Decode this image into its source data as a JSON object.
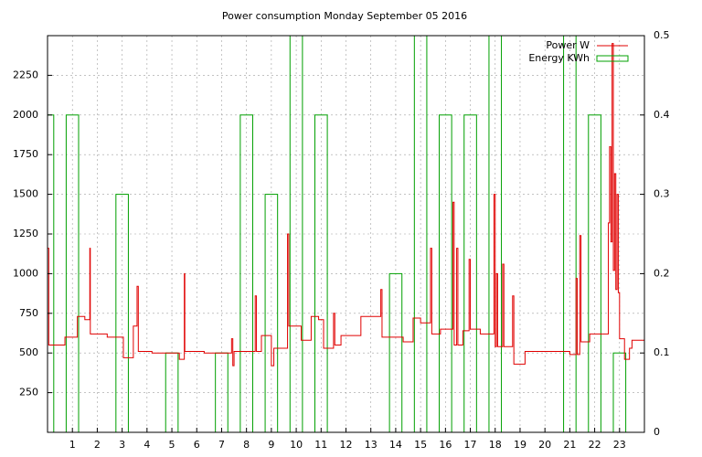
{
  "chart_data": {
    "type": "line",
    "title": "Power consumption Monday September 05 2016",
    "xlim": [
      0,
      24
    ],
    "xticks": [
      1,
      2,
      3,
      4,
      5,
      6,
      7,
      8,
      9,
      10,
      11,
      12,
      13,
      14,
      15,
      16,
      17,
      18,
      19,
      20,
      21,
      22,
      23
    ],
    "ylim": [
      0,
      2500
    ],
    "yticks": [
      250,
      500,
      750,
      1000,
      1250,
      1500,
      1750,
      2000,
      2250
    ],
    "y2lim": [
      0,
      0.5
    ],
    "y2ticks": [
      0,
      0.1,
      0.2,
      0.3,
      0.4,
      0.5
    ],
    "grid": true,
    "legend": "top right",
    "series": [
      {
        "name": "Power W",
        "color": "#e00000",
        "style": "steps",
        "x": [
          0,
          0.05,
          0.7,
          1.2,
          1.5,
          1.7,
          1.72,
          2.4,
          3.05,
          3.45,
          3.6,
          3.65,
          4.2,
          5.3,
          5.5,
          5.52,
          6.3,
          7.4,
          7.45,
          7.5,
          8.35,
          8.4,
          8.6,
          9.0,
          9.1,
          9.65,
          9.7,
          10.2,
          10.6,
          10.9,
          11.1,
          11.5,
          11.55,
          11.8,
          12.6,
          13.4,
          13.45,
          14.3,
          14.7,
          15.0,
          15.4,
          15.45,
          15.8,
          16.3,
          16.35,
          16.45,
          16.5,
          16.7,
          16.95,
          17.0,
          17.4,
          17.95,
          18.0,
          18.05,
          18.1,
          18.3,
          18.35,
          18.7,
          18.75,
          19.2,
          21.0,
          21.25,
          21.3,
          21.4,
          21.45,
          21.8,
          22.55,
          22.6,
          22.65,
          22.7,
          22.75,
          22.8,
          22.85,
          22.9,
          22.95,
          23.0,
          23.2,
          23.4,
          23.5,
          24
        ],
        "values": [
          1160,
          550,
          600,
          730,
          710,
          1160,
          620,
          600,
          470,
          670,
          920,
          510,
          500,
          460,
          1000,
          510,
          500,
          590,
          420,
          510,
          860,
          510,
          610,
          420,
          530,
          1250,
          670,
          580,
          730,
          710,
          530,
          750,
          550,
          610,
          730,
          900,
          600,
          570,
          720,
          690,
          1160,
          620,
          650,
          1450,
          550,
          1160,
          550,
          640,
          1090,
          650,
          620,
          1500,
          540,
          1000,
          540,
          1060,
          540,
          860,
          430,
          510,
          490,
          970,
          490,
          1240,
          570,
          620,
          1320,
          1800,
          1200,
          2450,
          1020,
          1630,
          900,
          1500,
          880,
          590,
          460,
          530,
          580,
          580
        ]
      },
      {
        "name": "Energy KWh",
        "color": "#00a000",
        "style": "boxes",
        "axis": "y2",
        "x": [
          0,
          1,
          2,
          3,
          4,
          5,
          6,
          7,
          8,
          9,
          10,
          11,
          12,
          13,
          14,
          15,
          16,
          17,
          18,
          19,
          20,
          21,
          22,
          23
        ],
        "values": [
          0.4,
          0.4,
          0,
          0.3,
          0,
          0.1,
          0,
          0.1,
          0.4,
          0.3,
          0.5,
          0.4,
          0,
          0,
          0.2,
          0.5,
          0.4,
          0.4,
          0.5,
          0,
          0,
          0.5,
          0.4,
          0.1
        ]
      }
    ]
  }
}
